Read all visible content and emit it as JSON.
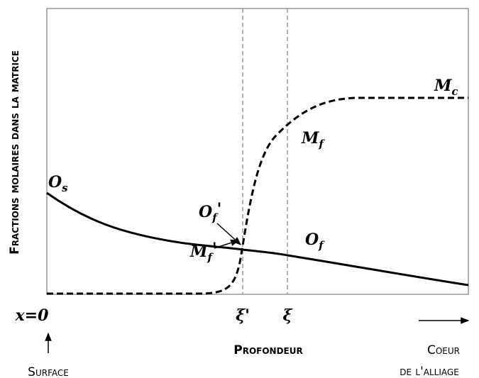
{
  "y_axis_label": "Fractions molaires dans la matrice",
  "x_axis_label": "Profondeur",
  "left_marker": "x=0",
  "left_caption": "Surface",
  "right_caption": [
    "Coeur",
    "de l'alliage"
  ],
  "positions": [
    {
      "main": "ξ",
      "prime": "'"
    },
    {
      "main": "ξ"
    }
  ],
  "curve_labels": {
    "O_s": {
      "main": "O",
      "sub": "s"
    },
    "M_c": {
      "main": "M",
      "sub": "c"
    },
    "M_f": {
      "main": "M",
      "sub": "f"
    },
    "O_f_prime": {
      "main": "O",
      "sub": "f",
      "prime": "'"
    },
    "O_f": {
      "main": "O",
      "sub": "f"
    },
    "M_f_prime": {
      "main": "M",
      "sub": "f",
      "prime": "'"
    }
  }
}
